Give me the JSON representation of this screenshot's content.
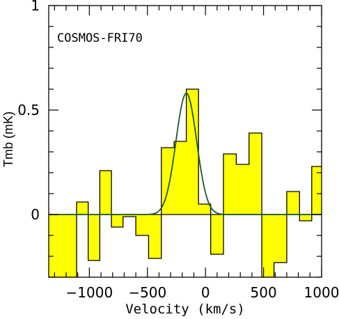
{
  "chart_data": {
    "type": "bar",
    "title": "",
    "annotation": "COSMOS-FRI70",
    "xlabel": "Velocity (km/s)",
    "ylabel": "Tmb (mK)",
    "xlim": [
      -1350,
      1000
    ],
    "ylim": [
      -0.3,
      1.0
    ],
    "xticks": [
      -1000,
      -500,
      0,
      500,
      1000
    ],
    "xtick_labels": [
      "−1000",
      "−500",
      "0",
      "500",
      "1000"
    ],
    "yticks": [
      0,
      0.5,
      1
    ],
    "ytick_labels": [
      "0",
      "0.5",
      "1"
    ],
    "bins": [
      {
        "x0": -1350,
        "x1": -1110,
        "value": -0.3
      },
      {
        "x0": -1110,
        "x1": -1010,
        "value": 0.06
      },
      {
        "x0": -1010,
        "x1": -910,
        "value": -0.22
      },
      {
        "x0": -910,
        "x1": -810,
        "value": 0.21
      },
      {
        "x0": -810,
        "x1": -710,
        "value": -0.06
      },
      {
        "x0": -710,
        "x1": -600,
        "value": -0.01
      },
      {
        "x0": -600,
        "x1": -490,
        "value": -0.1
      },
      {
        "x0": -490,
        "x1": -380,
        "value": -0.21
      },
      {
        "x0": -380,
        "x1": -270,
        "value": 0.32
      },
      {
        "x0": -270,
        "x1": -165,
        "value": 0.35
      },
      {
        "x0": -165,
        "x1": -60,
        "value": 0.6
      },
      {
        "x0": -60,
        "x1": 45,
        "value": 0.05
      },
      {
        "x0": 45,
        "x1": 155,
        "value": -0.19
      },
      {
        "x0": 155,
        "x1": 265,
        "value": 0.29
      },
      {
        "x0": 265,
        "x1": 375,
        "value": 0.24
      },
      {
        "x0": 375,
        "x1": 485,
        "value": 0.39
      },
      {
        "x0": 485,
        "x1": 590,
        "value": -0.3
      },
      {
        "x0": 590,
        "x1": 700,
        "value": -0.23
      },
      {
        "x0": 700,
        "x1": 810,
        "value": 0.11
      },
      {
        "x0": 810,
        "x1": 915,
        "value": -0.03
      },
      {
        "x0": 915,
        "x1": 1000,
        "value": 0.23
      }
    ],
    "gaussian_fit": {
      "amplitude": 0.58,
      "center": -165,
      "fwhm": 210
    },
    "fill_color": "#ffff00",
    "fit_color": "#1a5a2a",
    "grid": false
  }
}
